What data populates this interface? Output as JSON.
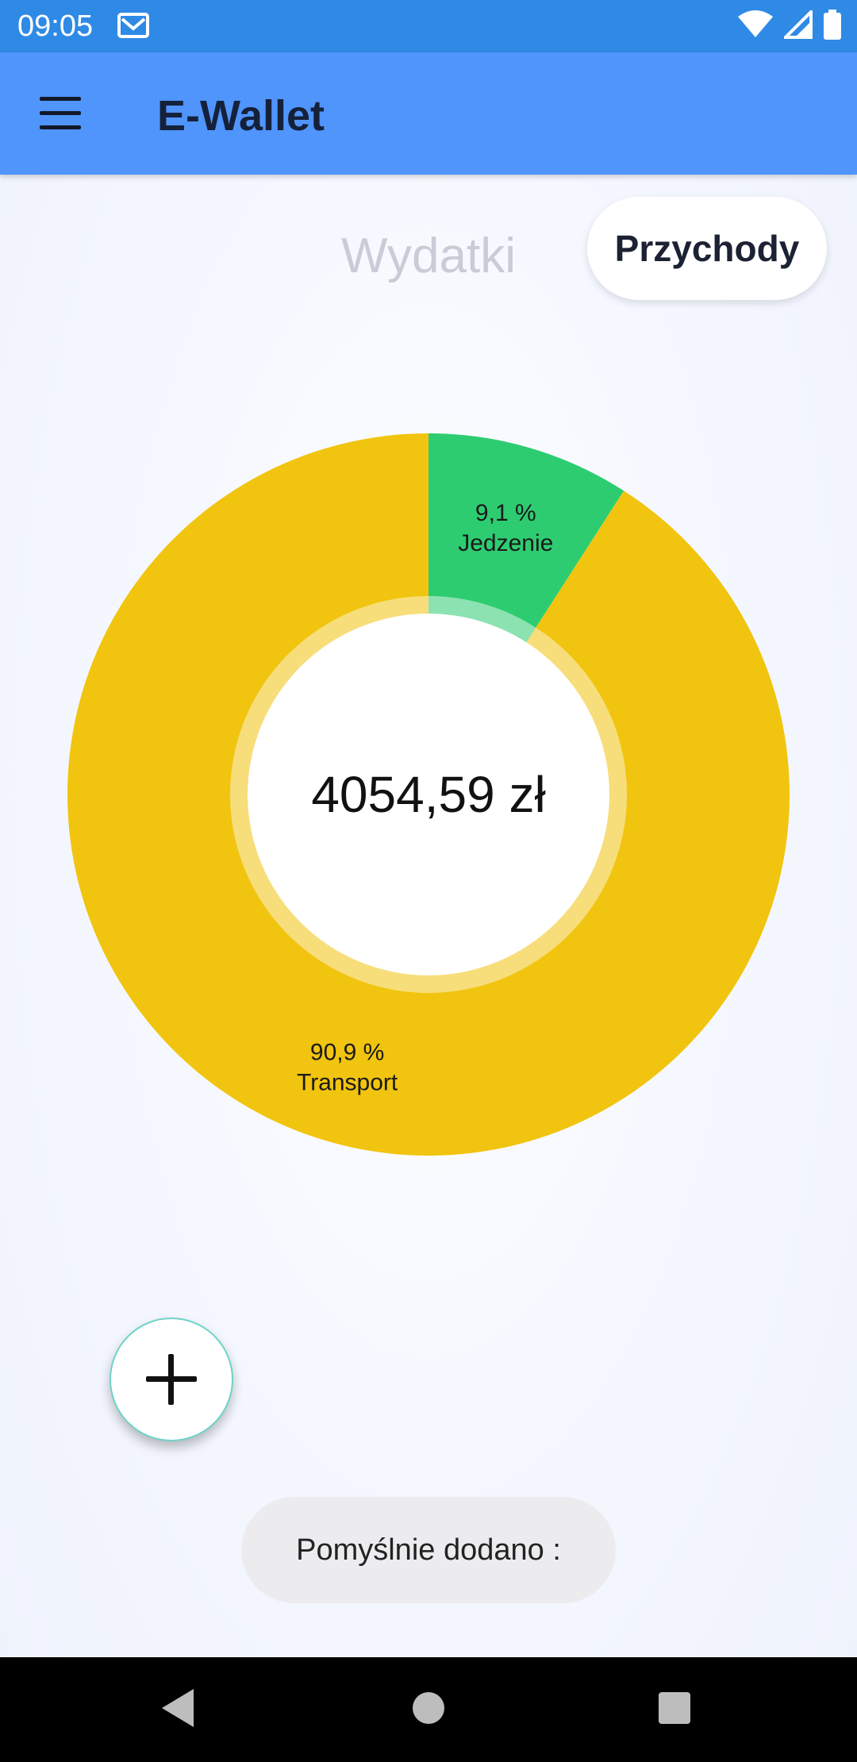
{
  "status_bar": {
    "time": "09:05",
    "icons": [
      "mail-icon",
      "wifi-icon",
      "signal-icon",
      "battery-icon"
    ]
  },
  "app_bar": {
    "title": "E-Wallet",
    "menu_icon": "hamburger-menu-icon"
  },
  "tabs": [
    {
      "label": "Wydatki",
      "selected": false
    },
    {
      "label": "Przychody",
      "selected": true
    }
  ],
  "chart_data": {
    "type": "pie",
    "total_label": "4054,59 zł",
    "slices": [
      {
        "label": "Jedzenie",
        "percent_label": "9,1 %",
        "value": 9.1,
        "color": "#2ecc71"
      },
      {
        "label": "Transport",
        "percent_label": "90,9 %",
        "value": 90.9,
        "color": "#f1c40f"
      }
    ]
  },
  "fab": {
    "icon": "plus-icon"
  },
  "toast": {
    "text": "Pomyślnie dodano :"
  },
  "nav_bar": {
    "icons": [
      "back-icon",
      "home-icon",
      "recent-apps-icon"
    ]
  },
  "colors": {
    "status_bar": "#2f8ae6",
    "app_bar": "#4f95fb",
    "accent": "#4f95fb"
  }
}
